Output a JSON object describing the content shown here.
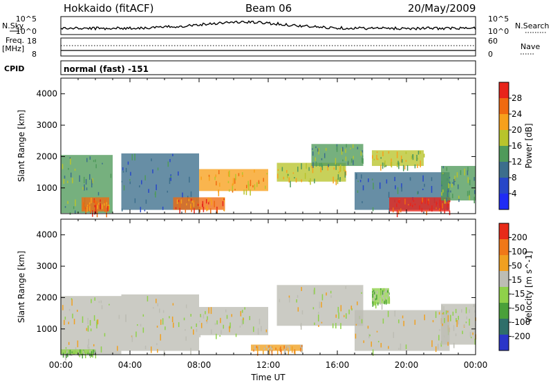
{
  "header": {
    "station": "Hokkaido (fitACF)",
    "beam": "Beam 06",
    "date": "20/May/2009"
  },
  "side_labels": {
    "nsky": "N.Sky",
    "nsearch": "N.Search",
    "freq": "Freq.",
    "freq_unit": "[MHz]",
    "nave": "Nave",
    "cpid": "CPID",
    "cpid_value": "normal (fast) -151"
  },
  "noise_panel": {
    "left_ticks": [
      "10^5",
      "10^0"
    ],
    "right_ticks": [
      "10^5",
      "10^0"
    ]
  },
  "freq_panel": {
    "left_ticks": [
      "18",
      "8"
    ],
    "right_ticks": [
      "60",
      "0"
    ]
  },
  "colors": {
    "power_scale": [
      "#1f2cf5",
      "#2747c8",
      "#3c6e8c",
      "#4f9a5a",
      "#b8c42c",
      "#f7a01c",
      "#f06a10",
      "#e8241a"
    ],
    "velocity_scale": [
      "#2a36c8",
      "#2f6f6a",
      "#4aa03a",
      "#8fd14a",
      "#bdbdb4",
      "#f0a020",
      "#f07818",
      "#e82a18"
    ]
  },
  "chart_data": [
    {
      "type": "heatmap",
      "title": "",
      "quantity": "Power",
      "colorbar_label": "Power [dB]",
      "colorbar_ticks": [
        "28",
        "24",
        "20",
        "16",
        "12",
        "8",
        "4"
      ],
      "ylabel": "Slant Range [km]",
      "xlabel": "",
      "ylim": [
        180,
        4500
      ],
      "yticks": [
        "4000",
        "3000",
        "2000",
        "1000"
      ],
      "xlim_hours": [
        0,
        24
      ],
      "regions": [
        {
          "t0": 0.0,
          "t1": 3.0,
          "r0": 200,
          "r1": 2050,
          "level": 3
        },
        {
          "t0": 1.2,
          "t1": 2.8,
          "r0": 250,
          "r1": 700,
          "level": 6
        },
        {
          "t0": 3.5,
          "t1": 8.0,
          "r0": 300,
          "r1": 2100,
          "level": 2
        },
        {
          "t0": 6.5,
          "t1": 9.5,
          "r0": 300,
          "r1": 700,
          "level": 6
        },
        {
          "t0": 8.0,
          "t1": 12.0,
          "r0": 900,
          "r1": 1600,
          "level": 5
        },
        {
          "t0": 12.5,
          "t1": 16.5,
          "r0": 1200,
          "r1": 1800,
          "level": 4
        },
        {
          "t0": 14.5,
          "t1": 17.5,
          "r0": 1700,
          "r1": 2400,
          "level": 3
        },
        {
          "t0": 17.0,
          "t1": 22.5,
          "r0": 300,
          "r1": 1500,
          "level": 2
        },
        {
          "t0": 19.0,
          "t1": 22.5,
          "r0": 250,
          "r1": 700,
          "level": 7
        },
        {
          "t0": 18.0,
          "t1": 21.0,
          "r0": 1700,
          "r1": 2200,
          "level": 4
        },
        {
          "t0": 22.0,
          "t1": 24.0,
          "r0": 600,
          "r1": 1700,
          "level": 3
        }
      ]
    },
    {
      "type": "heatmap",
      "title": "",
      "quantity": "Velocity",
      "colorbar_label": "Velocity [m s^-1]",
      "colorbar_ticks": [
        "200",
        "100",
        "50",
        "15",
        "-15",
        "-50",
        "-100",
        "-200"
      ],
      "ylabel": "Slant Range [km]",
      "xlabel": "Time UT",
      "ylim": [
        180,
        4500
      ],
      "yticks": [
        "4000",
        "3000",
        "2000",
        "1000"
      ],
      "xticks": [
        "00:00",
        "04:00",
        "08:00",
        "12:00",
        "16:00",
        "20:00",
        "00:00"
      ],
      "xlim_hours": [
        0,
        24
      ],
      "regions": [
        {
          "t0": 0.0,
          "t1": 3.5,
          "r0": 200,
          "r1": 2050,
          "level": 4
        },
        {
          "t0": 3.5,
          "t1": 8.0,
          "r0": 300,
          "r1": 2100,
          "level": 4
        },
        {
          "t0": 8.0,
          "t1": 12.0,
          "r0": 800,
          "r1": 1700,
          "level": 4
        },
        {
          "t0": 11.0,
          "t1": 14.0,
          "r0": 300,
          "r1": 500,
          "level": 5
        },
        {
          "t0": 12.5,
          "t1": 17.5,
          "r0": 1100,
          "r1": 2400,
          "level": 4
        },
        {
          "t0": 17.0,
          "t1": 22.5,
          "r0": 300,
          "r1": 1600,
          "level": 4
        },
        {
          "t0": 18.0,
          "t1": 19.0,
          "r0": 1800,
          "r1": 2300,
          "level": 3
        },
        {
          "t0": 22.0,
          "t1": 24.0,
          "r0": 500,
          "r1": 1800,
          "level": 4
        },
        {
          "t0": 0.0,
          "t1": 2.0,
          "r0": 200,
          "r1": 350,
          "level": 3
        }
      ]
    }
  ]
}
